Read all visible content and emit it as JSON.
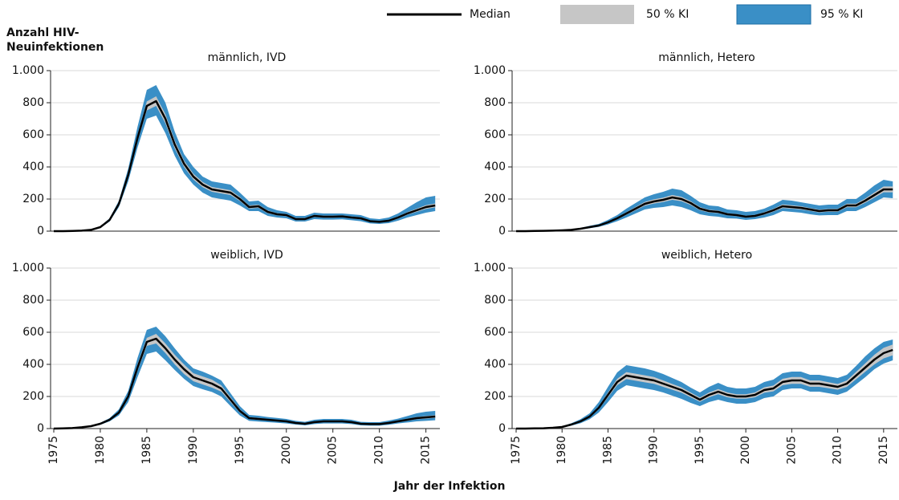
{
  "y_label": "Anzahl HIV-Neuinfektionen",
  "x_label": "Jahr der Infektion",
  "chart_data": [
    {
      "type": "line",
      "title": "männlich, IVD",
      "x": [
        1975,
        1976,
        1977,
        1978,
        1979,
        1980,
        1981,
        1982,
        1983,
        1984,
        1985,
        1986,
        1987,
        1988,
        1989,
        1990,
        1991,
        1992,
        1993,
        1994,
        1995,
        1996,
        1997,
        1998,
        1999,
        2000,
        2001,
        2002,
        2003,
        2004,
        2005,
        2006,
        2007,
        2008,
        2009,
        2010,
        2011,
        2012,
        2013,
        2014,
        2015,
        2016
      ],
      "xlim": [
        1975,
        2016.5
      ],
      "ylim": [
        0,
        1000
      ],
      "yticks": [
        0,
        200,
        400,
        600,
        800,
        {
          "value": 1000,
          "label": "1.000"
        }
      ],
      "grid": true,
      "series": [
        {
          "name": "95 % KI",
          "color": "#3a8fc6",
          "upper": [
            0,
            0,
            1,
            4,
            10,
            30,
            80,
            190,
            390,
            650,
            880,
            910,
            800,
            620,
            480,
            400,
            340,
            310,
            300,
            290,
            240,
            185,
            190,
            150,
            130,
            120,
            95,
            95,
            115,
            110,
            110,
            110,
            105,
            100,
            80,
            75,
            85,
            110,
            145,
            180,
            210,
            220
          ],
          "lower": [
            0,
            0,
            1,
            2,
            6,
            20,
            60,
            150,
            310,
            520,
            700,
            720,
            610,
            470,
            360,
            290,
            240,
            210,
            200,
            190,
            160,
            125,
            125,
            95,
            85,
            80,
            60,
            60,
            75,
            72,
            72,
            74,
            68,
            62,
            48,
            45,
            50,
            65,
            85,
            100,
            115,
            125
          ]
        },
        {
          "name": "50 % KI",
          "color": "#c6c6c6",
          "upper": [
            0,
            0,
            1,
            3,
            8,
            26,
            73,
            176,
            362,
            600,
            808,
            840,
            728,
            565,
            440,
            358,
            306,
            275,
            265,
            255,
            212,
            160,
            165,
            129,
            112,
            107,
            81,
            81,
            101,
            96,
            96,
            98,
            91,
            86,
            67,
            63,
            70,
            92,
            118,
            140,
            162,
            172
          ],
          "lower": [
            0,
            0,
            1,
            3,
            8,
            24,
            67,
            164,
            338,
            560,
            752,
            780,
            672,
            515,
            400,
            322,
            274,
            245,
            235,
            225,
            188,
            140,
            145,
            111,
            98,
            93,
            69,
            69,
            89,
            84,
            84,
            86,
            79,
            74,
            57,
            53,
            60,
            78,
            102,
            120,
            138,
            148
          ]
        },
        {
          "name": "Median",
          "color": "#000000",
          "values": [
            0,
            0,
            1,
            3,
            8,
            25,
            70,
            170,
            350,
            580,
            780,
            810,
            700,
            540,
            420,
            340,
            290,
            260,
            250,
            240,
            200,
            150,
            155,
            120,
            105,
            100,
            75,
            75,
            95,
            90,
            90,
            92,
            85,
            80,
            62,
            58,
            65,
            85,
            110,
            130,
            150,
            160
          ]
        }
      ]
    },
    {
      "type": "line",
      "title": "männlich, Hetero",
      "x": [
        1975,
        1976,
        1977,
        1978,
        1979,
        1980,
        1981,
        1982,
        1983,
        1984,
        1985,
        1986,
        1987,
        1988,
        1989,
        1990,
        1991,
        1992,
        1993,
        1994,
        1995,
        1996,
        1997,
        1998,
        1999,
        2000,
        2001,
        2002,
        2003,
        2004,
        2005,
        2006,
        2007,
        2008,
        2009,
        2010,
        2011,
        2012,
        2013,
        2014,
        2015,
        2016
      ],
      "xlim": [
        1975,
        2016.5
      ],
      "ylim": [
        0,
        1000
      ],
      "yticks": [
        0,
        200,
        400,
        600,
        800,
        {
          "value": 1000,
          "label": "1.000"
        }
      ],
      "grid": true,
      "series": [
        {
          "name": "95 % KI",
          "color": "#3a8fc6",
          "upper": [
            0,
            0,
            1,
            3,
            4,
            7,
            11,
            20,
            33,
            45,
            70,
            100,
            140,
            175,
            210,
            230,
            245,
            265,
            255,
            220,
            180,
            160,
            155,
            135,
            130,
            120,
            125,
            140,
            165,
            195,
            190,
            180,
            170,
            160,
            165,
            165,
            200,
            200,
            240,
            285,
            320,
            310
          ],
          "lower": [
            0,
            0,
            1,
            1,
            2,
            3,
            5,
            10,
            18,
            27,
            42,
            62,
            85,
            110,
            135,
            145,
            150,
            160,
            150,
            130,
            105,
            95,
            90,
            80,
            78,
            70,
            75,
            85,
            100,
            125,
            120,
            115,
            105,
            98,
            100,
            100,
            125,
            125,
            150,
            180,
            210,
            205
          ]
        },
        {
          "name": "50 % KI",
          "color": "#c6c6c6",
          "upper": [
            0,
            0,
            1,
            2,
            3,
            5,
            9,
            16,
            27,
            37,
            59,
            86,
            118,
            150,
            182,
            198,
            209,
            225,
            214,
            187,
            150,
            134,
            128,
            112,
            107,
            96,
            102,
            118,
            139,
            166,
            161,
            155,
            144,
            134,
            139,
            139,
            171,
            171,
            203,
            241,
            278,
            278
          ],
          "lower": [
            0,
            0,
            1,
            2,
            3,
            5,
            7,
            14,
            23,
            33,
            51,
            74,
            102,
            130,
            158,
            172,
            181,
            195,
            186,
            163,
            130,
            116,
            112,
            98,
            93,
            84,
            88,
            102,
            121,
            144,
            140,
            135,
            126,
            116,
            121,
            121,
            149,
            149,
            177,
            209,
            242,
            242
          ]
        },
        {
          "name": "Median",
          "color": "#000000",
          "values": [
            0,
            0,
            1,
            2,
            3,
            5,
            8,
            15,
            25,
            35,
            55,
            80,
            110,
            140,
            170,
            185,
            195,
            210,
            200,
            175,
            140,
            125,
            120,
            105,
            100,
            90,
            95,
            110,
            130,
            155,
            150,
            145,
            135,
            125,
            130,
            130,
            160,
            160,
            190,
            225,
            260,
            260
          ]
        }
      ]
    },
    {
      "type": "line",
      "title": "weiblich, IVD",
      "x": [
        1975,
        1976,
        1977,
        1978,
        1979,
        1980,
        1981,
        1982,
        1983,
        1984,
        1985,
        1986,
        1987,
        1988,
        1989,
        1990,
        1991,
        1992,
        1993,
        1994,
        1995,
        1996,
        1997,
        1998,
        1999,
        2000,
        2001,
        2002,
        2003,
        2004,
        2005,
        2006,
        2007,
        2008,
        2009,
        2010,
        2011,
        2012,
        2013,
        2014,
        2015,
        2016
      ],
      "xlim": [
        1975,
        2016.5
      ],
      "ylim": [
        0,
        1000
      ],
      "yticks": [
        0,
        200,
        400,
        600,
        800,
        {
          "value": 1000,
          "label": "1.000"
        }
      ],
      "grid": true,
      "xticks": [
        1975,
        1980,
        1985,
        1990,
        1995,
        2000,
        2005,
        2010,
        2015
      ],
      "series": [
        {
          "name": "95 % KI",
          "color": "#3a8fc6",
          "upper": [
            0,
            1,
            4,
            10,
            18,
            36,
            65,
            120,
            235,
            440,
            615,
            635,
            575,
            500,
            430,
            375,
            355,
            330,
            300,
            220,
            140,
            85,
            80,
            72,
            66,
            60,
            48,
            42,
            55,
            60,
            60,
            60,
            55,
            42,
            40,
            40,
            50,
            62,
            78,
            95,
            105,
            110
          ],
          "lower": [
            0,
            1,
            2,
            6,
            12,
            24,
            45,
            82,
            165,
            320,
            465,
            480,
            425,
            365,
            310,
            265,
            245,
            228,
            200,
            140,
            82,
            48,
            44,
            40,
            36,
            32,
            25,
            20,
            28,
            32,
            32,
            32,
            28,
            20,
            18,
            18,
            24,
            32,
            38,
            45,
            48,
            52
          ]
        },
        {
          "name": "50 % KI",
          "color": "#c6c6c6",
          "upper": [
            0,
            1,
            3,
            8,
            16,
            32,
            58,
            106,
            212,
            400,
            565,
            590,
            530,
            460,
            400,
            345,
            325,
            305,
            270,
            195,
            120,
            71,
            66,
            60,
            55,
            50,
            39,
            33,
            44,
            49,
            49,
            49,
            44,
            33,
            31,
            31,
            39,
            50,
            61,
            72,
            78,
            83
          ],
          "lower": [
            0,
            1,
            3,
            8,
            14,
            28,
            52,
            94,
            188,
            360,
            515,
            530,
            470,
            400,
            340,
            295,
            275,
            255,
            230,
            165,
            100,
            59,
            54,
            50,
            45,
            40,
            31,
            27,
            36,
            41,
            41,
            41,
            36,
            27,
            25,
            25,
            31,
            40,
            49,
            58,
            62,
            67
          ]
        },
        {
          "name": "Median",
          "color": "#000000",
          "values": [
            0,
            1,
            3,
            8,
            15,
            30,
            55,
            100,
            200,
            380,
            540,
            560,
            500,
            430,
            370,
            320,
            300,
            280,
            250,
            180,
            110,
            65,
            60,
            55,
            50,
            45,
            35,
            30,
            40,
            45,
            45,
            45,
            40,
            30,
            28,
            28,
            35,
            45,
            55,
            65,
            70,
            75
          ]
        }
      ]
    },
    {
      "type": "line",
      "title": "weiblich, Hetero",
      "x": [
        1975,
        1976,
        1977,
        1978,
        1979,
        1980,
        1981,
        1982,
        1983,
        1984,
        1985,
        1986,
        1987,
        1988,
        1989,
        1990,
        1991,
        1992,
        1993,
        1994,
        1995,
        1996,
        1997,
        1998,
        1999,
        2000,
        2001,
        2002,
        2003,
        2004,
        2005,
        2006,
        2007,
        2008,
        2009,
        2010,
        2011,
        2012,
        2013,
        2014,
        2015,
        2016
      ],
      "xlim": [
        1975,
        2016.5
      ],
      "ylim": [
        0,
        1000
      ],
      "yticks": [
        0,
        200,
        400,
        600,
        800,
        {
          "value": 1000,
          "label": "1.000"
        }
      ],
      "grid": true,
      "xticks": [
        1975,
        1980,
        1985,
        1990,
        1995,
        2000,
        2005,
        2010,
        2015
      ],
      "series": [
        {
          "name": "95 % KI",
          "color": "#3a8fc6",
          "upper": [
            0,
            0,
            1,
            3,
            7,
            14,
            33,
            58,
            95,
            165,
            260,
            350,
            395,
            385,
            375,
            360,
            340,
            315,
            290,
            255,
            225,
            260,
            285,
            260,
            250,
            250,
            260,
            290,
            305,
            345,
            355,
            355,
            335,
            335,
            325,
            315,
            335,
            390,
            450,
            500,
            540,
            555
          ],
          "lower": [
            0,
            0,
            1,
            1,
            3,
            6,
            18,
            33,
            58,
            100,
            165,
            235,
            270,
            260,
            250,
            240,
            225,
            205,
            185,
            160,
            140,
            165,
            180,
            165,
            155,
            155,
            165,
            190,
            200,
            240,
            250,
            250,
            230,
            230,
            220,
            210,
            230,
            275,
            320,
            370,
            405,
            425
          ]
        },
        {
          "name": "50 % KI",
          "color": "#c6c6c6",
          "upper": [
            0,
            0,
            1,
            2,
            5,
            11,
            27,
            48,
            80,
            139,
            225,
            310,
            352,
            342,
            332,
            321,
            300,
            278,
            257,
            225,
            193,
            225,
            246,
            225,
            214,
            214,
            225,
            257,
            268,
            310,
            321,
            321,
            300,
            300,
            289,
            278,
            300,
            353,
            406,
            460,
            503,
            524
          ],
          "lower": [
            0,
            0,
            1,
            2,
            5,
            9,
            23,
            42,
            70,
            121,
            195,
            270,
            308,
            298,
            288,
            279,
            260,
            242,
            223,
            195,
            167,
            195,
            214,
            195,
            186,
            186,
            195,
            223,
            232,
            270,
            279,
            279,
            260,
            260,
            251,
            242,
            260,
            307,
            354,
            400,
            437,
            456
          ]
        },
        {
          "name": "Median",
          "color": "#000000",
          "values": [
            0,
            0,
            1,
            2,
            5,
            10,
            25,
            45,
            75,
            130,
            210,
            290,
            330,
            320,
            310,
            300,
            280,
            260,
            240,
            210,
            180,
            210,
            230,
            210,
            200,
            200,
            210,
            240,
            250,
            290,
            300,
            300,
            280,
            280,
            270,
            260,
            280,
            330,
            380,
            430,
            470,
            490
          ]
        }
      ]
    }
  ]
}
